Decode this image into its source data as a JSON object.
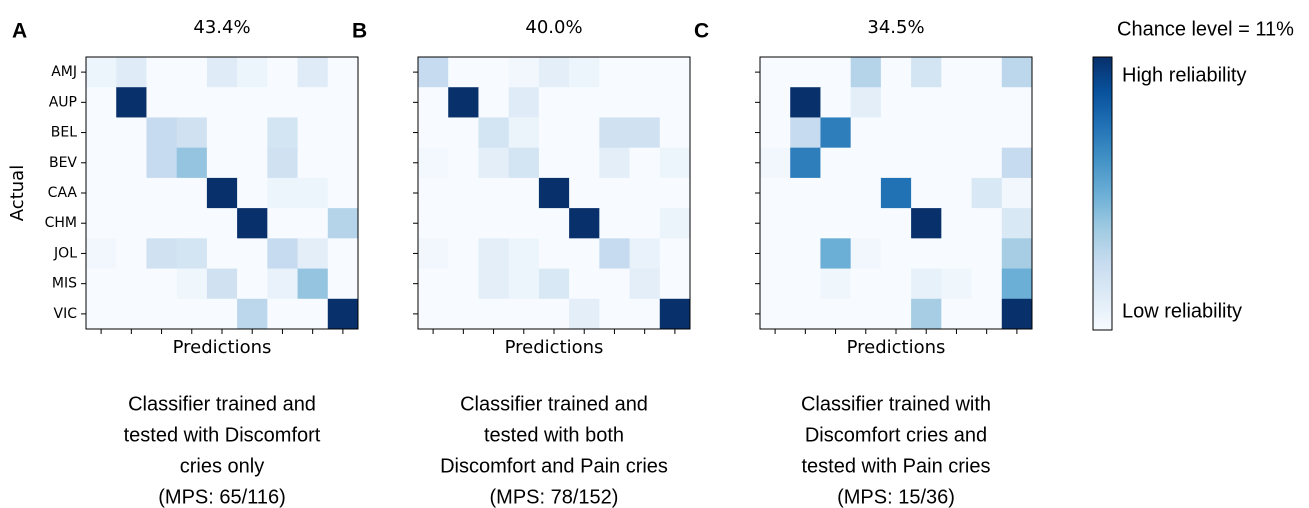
{
  "chart_data": [
    {
      "type": "heatmap",
      "panel": "A",
      "title": "43.4%",
      "ylabel": "Actual",
      "xlabel": "Predictions",
      "categories": [
        "AMJ",
        "AUP",
        "BEL",
        "BEV",
        "CAA",
        "CHM",
        "JOL",
        "MIS",
        "VIC"
      ],
      "caption": [
        "Classifier trained and",
        "tested with Discomfort",
        "cries only",
        "(MPS: 65/116)"
      ],
      "values": [
        [
          0.05,
          0.12,
          0,
          0,
          0.12,
          0.05,
          0,
          0.12,
          0
        ],
        [
          0,
          1,
          0,
          0,
          0,
          0,
          0,
          0,
          0
        ],
        [
          0,
          0,
          0.25,
          0.2,
          0,
          0,
          0.18,
          0,
          0
        ],
        [
          0,
          0,
          0.25,
          0.4,
          0,
          0,
          0.2,
          0,
          0
        ],
        [
          0,
          0,
          0,
          0,
          1,
          0,
          0.05,
          0.05,
          0
        ],
        [
          0,
          0,
          0,
          0,
          0,
          1,
          0,
          0,
          0.3
        ],
        [
          0.03,
          0,
          0.2,
          0.18,
          0,
          0,
          0.25,
          0.1,
          0
        ],
        [
          0,
          0,
          0,
          0.04,
          0.2,
          0,
          0.07,
          0.4,
          0
        ],
        [
          0,
          0,
          0,
          0,
          0,
          0.28,
          0,
          0,
          1
        ]
      ]
    },
    {
      "type": "heatmap",
      "panel": "B",
      "title": "40.0%",
      "xlabel": "Predictions",
      "caption": [
        "Classifier trained and",
        "tested with both",
        "Discomfort and Pain cries",
        "(MPS: 78/152)"
      ],
      "values": [
        [
          0.25,
          0,
          0,
          0.03,
          0.1,
          0.05,
          0,
          0,
          0
        ],
        [
          0,
          1,
          0,
          0.12,
          0,
          0,
          0,
          0,
          0
        ],
        [
          0,
          0,
          0.18,
          0.06,
          0,
          0,
          0.2,
          0.2,
          0
        ],
        [
          0.02,
          0,
          0.1,
          0.18,
          0,
          0,
          0.1,
          0,
          0.05
        ],
        [
          0,
          0,
          0,
          0,
          1,
          0,
          0,
          0,
          0
        ],
        [
          0,
          0,
          0,
          0,
          0,
          1,
          0,
          0,
          0.06
        ],
        [
          0.03,
          0,
          0.1,
          0.05,
          0,
          0,
          0.25,
          0.07,
          0
        ],
        [
          0,
          0,
          0.1,
          0.05,
          0.15,
          0,
          0,
          0.1,
          0
        ],
        [
          0,
          0,
          0,
          0,
          0,
          0.1,
          0,
          0,
          1
        ]
      ]
    },
    {
      "type": "heatmap",
      "panel": "C",
      "title": "34.5%",
      "xlabel": "Predictions",
      "caption": [
        "Classifier trained with",
        "Discomfort cries and",
        "tested with Pain cries",
        "(MPS: 15/36)"
      ],
      "values": [
        [
          0,
          0,
          0,
          0.3,
          0,
          0.18,
          0,
          0,
          0.28
        ],
        [
          0,
          1,
          0,
          0.1,
          0,
          0,
          0,
          0,
          0
        ],
        [
          0,
          0.25,
          0.7,
          0,
          0,
          0,
          0,
          0,
          0
        ],
        [
          0.03,
          0.7,
          0,
          0,
          0,
          0,
          0,
          0,
          0.25
        ],
        [
          0,
          0,
          0,
          0,
          0.75,
          0,
          0,
          0.15,
          0.03
        ],
        [
          0,
          0,
          0,
          0,
          0,
          1,
          0,
          0,
          0.15
        ],
        [
          0,
          0,
          0.5,
          0.03,
          0,
          0,
          0,
          0,
          0.35
        ],
        [
          0,
          0,
          0.04,
          0,
          0,
          0.08,
          0.04,
          0,
          0.5
        ],
        [
          0,
          0,
          0,
          0,
          0,
          0.35,
          0,
          0,
          1
        ]
      ]
    }
  ],
  "colorbar": {
    "title": "Chance level = 11%",
    "high_label": "High reliability",
    "low_label": "Low reliability",
    "colormap": [
      "#f7fbff",
      "#deebf7",
      "#c6dbef",
      "#9ecae1",
      "#6baed6",
      "#4292c6",
      "#2171b5",
      "#08519c",
      "#08306b"
    ]
  }
}
